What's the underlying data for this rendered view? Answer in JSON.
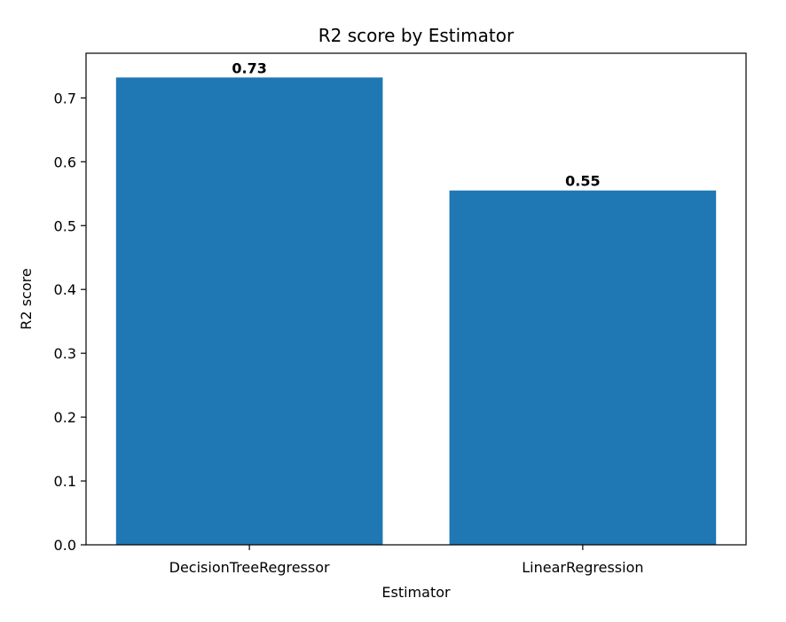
{
  "chart_data": {
    "type": "bar",
    "title": "R2 score by Estimator",
    "xlabel": "Estimator",
    "ylabel": "R2 score",
    "categories": [
      "DecisionTreeRegressor",
      "LinearRegression"
    ],
    "values": [
      0.732,
      0.555
    ],
    "data_labels": [
      "0.73",
      "0.55"
    ],
    "ylim": [
      0,
      0.77
    ],
    "yticks": [
      0.0,
      0.1,
      0.2,
      0.3,
      0.4,
      0.5,
      0.6,
      0.7
    ],
    "ytick_labels": [
      "0.0",
      "0.1",
      "0.2",
      "0.3",
      "0.4",
      "0.5",
      "0.6",
      "0.7"
    ],
    "grid": false,
    "legend": "none",
    "bar_color": "#1f77b4"
  }
}
